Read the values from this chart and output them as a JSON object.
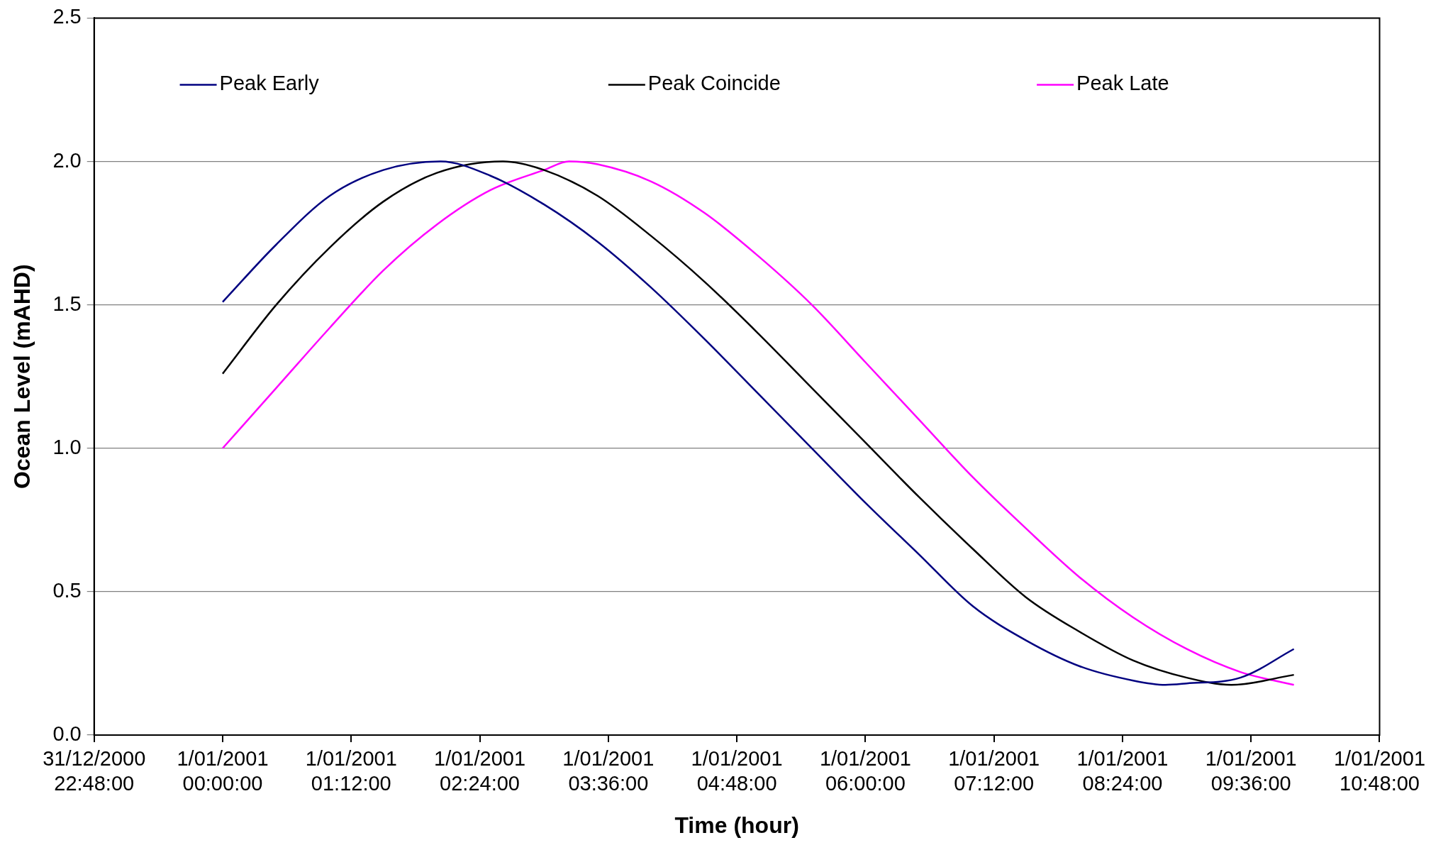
{
  "chart_data": {
    "type": "line",
    "xlabel": "Time (hour)",
    "ylabel": "Ocean Level (mAHD)",
    "xlim": [
      "2000-12-31T22:48",
      "2001-01-01T10:48"
    ],
    "ylim": [
      0,
      2.5
    ],
    "xticks": [
      {
        "value": "2000-12-31T22:48",
        "label": "31/12/2000\n22:48:00"
      },
      {
        "value": "2001-01-01T00:00",
        "label": "1/01/2001\n00:00:00"
      },
      {
        "value": "2001-01-01T01:12",
        "label": "1/01/2001\n01:12:00"
      },
      {
        "value": "2001-01-01T02:24",
        "label": "1/01/2001\n02:24:00"
      },
      {
        "value": "2001-01-01T03:36",
        "label": "1/01/2001\n03:36:00"
      },
      {
        "value": "2001-01-01T04:48",
        "label": "1/01/2001\n04:48:00"
      },
      {
        "value": "2001-01-01T06:00",
        "label": "1/01/2001\n06:00:00"
      },
      {
        "value": "2001-01-01T07:12",
        "label": "1/01/2001\n07:12:00"
      },
      {
        "value": "2001-01-01T08:24",
        "label": "1/01/2001\n08:24:00"
      },
      {
        "value": "2001-01-01T09:36",
        "label": "1/01/2001\n09:36:00"
      },
      {
        "value": "2001-01-01T10:48",
        "label": "1/01/2001\n10:48:00"
      }
    ],
    "yticks": [
      {
        "value": 0,
        "label": "0.0"
      },
      {
        "value": 0.5,
        "label": "0.5"
      },
      {
        "value": 1,
        "label": "1.0"
      },
      {
        "value": 1.5,
        "label": "1.5"
      },
      {
        "value": 2,
        "label": "2.0"
      },
      {
        "value": 2.5,
        "label": "2.5"
      }
    ],
    "grid": "y",
    "legend": "top",
    "marker": "none",
    "line_style": "solid",
    "series": [
      {
        "name": "Peak Early",
        "color": "#000080",
        "x": [
          "2001-01-01T00:00",
          "2001-01-01T00:30",
          "2001-01-01T01:00",
          "2001-01-01T01:30",
          "2001-01-01T02:02",
          "2001-01-01T02:30",
          "2001-01-01T03:00",
          "2001-01-01T03:30",
          "2001-01-01T04:00",
          "2001-01-01T04:30",
          "2001-01-01T05:00",
          "2001-01-01T05:30",
          "2001-01-01T06:00",
          "2001-01-01T06:30",
          "2001-01-01T07:00",
          "2001-01-01T07:30",
          "2001-01-01T08:00",
          "2001-01-01T08:30",
          "2001-01-01T08:48",
          "2001-01-01T09:00",
          "2001-01-01T09:30",
          "2001-01-01T10:00"
        ],
        "values": [
          1.51,
          1.71,
          1.88,
          1.97,
          2.0,
          1.95,
          1.85,
          1.72,
          1.56,
          1.38,
          1.19,
          1.0,
          0.81,
          0.63,
          0.45,
          0.33,
          0.24,
          0.19,
          0.175,
          0.18,
          0.2,
          0.3
        ]
      },
      {
        "name": "Peak Coincide",
        "color": "#000000",
        "x": [
          "2001-01-01T00:00",
          "2001-01-01T00:30",
          "2001-01-01T01:00",
          "2001-01-01T01:30",
          "2001-01-01T02:00",
          "2001-01-01T02:37",
          "2001-01-01T03:00",
          "2001-01-01T03:30",
          "2001-01-01T04:00",
          "2001-01-01T04:30",
          "2001-01-01T05:00",
          "2001-01-01T05:30",
          "2001-01-01T06:00",
          "2001-01-01T06:30",
          "2001-01-01T07:00",
          "2001-01-01T07:30",
          "2001-01-01T08:00",
          "2001-01-01T08:30",
          "2001-01-01T09:00",
          "2001-01-01T09:25",
          "2001-01-01T10:00"
        ],
        "values": [
          1.26,
          1.5,
          1.7,
          1.86,
          1.96,
          2.0,
          1.97,
          1.88,
          1.74,
          1.58,
          1.4,
          1.21,
          1.02,
          0.83,
          0.65,
          0.48,
          0.36,
          0.26,
          0.2,
          0.175,
          0.21
        ]
      },
      {
        "name": "Peak Late",
        "color": "#ff00ff",
        "x": [
          "2001-01-01T00:00",
          "2001-01-01T00:30",
          "2001-01-01T01:00",
          "2001-01-01T01:30",
          "2001-01-01T02:00",
          "2001-01-01T02:30",
          "2001-01-01T03:00",
          "2001-01-01T03:14",
          "2001-01-01T03:30",
          "2001-01-01T04:00",
          "2001-01-01T04:30",
          "2001-01-01T05:00",
          "2001-01-01T05:30",
          "2001-01-01T06:00",
          "2001-01-01T06:30",
          "2001-01-01T07:00",
          "2001-01-01T07:30",
          "2001-01-01T08:00",
          "2001-01-01T08:30",
          "2001-01-01T09:00",
          "2001-01-01T09:30",
          "2001-01-01T10:00"
        ],
        "values": [
          1.0,
          1.21,
          1.42,
          1.62,
          1.78,
          1.9,
          1.97,
          2.0,
          1.99,
          1.93,
          1.82,
          1.67,
          1.5,
          1.3,
          1.1,
          0.9,
          0.72,
          0.55,
          0.41,
          0.3,
          0.22,
          0.175
        ]
      }
    ]
  }
}
